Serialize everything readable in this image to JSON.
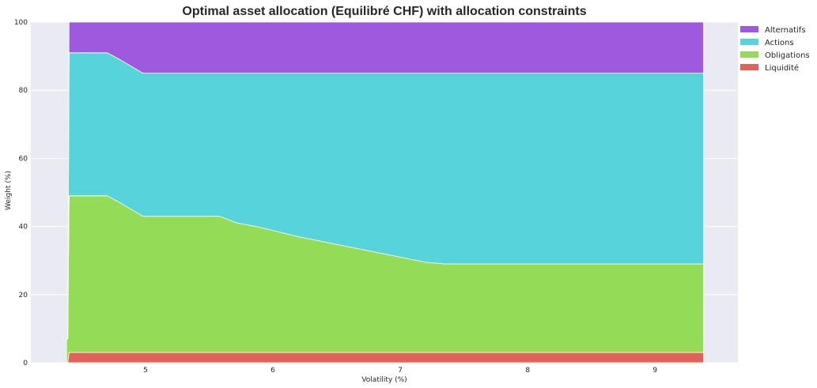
{
  "chart_data": {
    "type": "area",
    "stacked": true,
    "title": "Optimal asset allocation (Equilibré CHF) with allocation constraints",
    "xlabel": "Volatility (%)",
    "ylabel": "Weight (%)",
    "xlim": [
      4.1,
      9.65
    ],
    "ylim": [
      0,
      100
    ],
    "xticks": [
      5,
      6,
      7,
      8,
      9
    ],
    "yticks": [
      0,
      20,
      40,
      60,
      80,
      100
    ],
    "grid": true,
    "legend_position": "top-right outside",
    "background_color": "#EAEAF2",
    "x": [
      4.38,
      4.39,
      4.4,
      4.7,
      4.8,
      4.98,
      5.05,
      5.2,
      5.58,
      5.72,
      5.87,
      6.2,
      6.6,
      7.0,
      7.2,
      7.35,
      8.0,
      9.0,
      9.38
    ],
    "series": [
      {
        "name": "Liquidité",
        "color": "#E2625A",
        "values": [
          0,
          0,
          3,
          3,
          3,
          3,
          3,
          3,
          3,
          3,
          3,
          3,
          3,
          3,
          3,
          3,
          3,
          3,
          3
        ]
      },
      {
        "name": "Obligations",
        "color": "#94DC58",
        "values": [
          7,
          7,
          46,
          46,
          44,
          40,
          40,
          40,
          40,
          38,
          37,
          34,
          31,
          28,
          26.5,
          26,
          26,
          26,
          26
        ]
      },
      {
        "name": "Actions",
        "color": "#57D3DB",
        "values": [
          0,
          0,
          42,
          42,
          42,
          42,
          42,
          42,
          42,
          44,
          45,
          48,
          51,
          54,
          55.5,
          56,
          56,
          56,
          56
        ]
      },
      {
        "name": "Alternatifs",
        "color": "#9E59DF",
        "values": [
          0,
          0,
          9,
          9,
          11,
          15,
          15,
          15,
          15,
          15,
          15,
          15,
          15,
          15,
          15,
          15,
          15,
          15,
          15
        ]
      }
    ],
    "legend_order": [
      "Alternatifs",
      "Actions",
      "Obligations",
      "Liquidité"
    ]
  }
}
